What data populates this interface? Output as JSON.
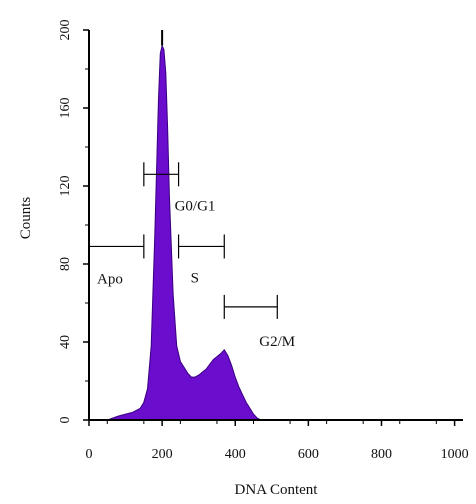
{
  "chart_data": {
    "type": "area",
    "xlabel": "DNA Content",
    "ylabel": "Counts",
    "xlim": [
      0,
      1023
    ],
    "ylim": [
      0,
      200
    ],
    "x_ticks": [
      0,
      200,
      400,
      600,
      800,
      1000
    ],
    "y_ticks": [
      0,
      40,
      80,
      120,
      160,
      200
    ],
    "grid": false,
    "fill_color": "#6a0dcc",
    "histogram": {
      "x": [
        50,
        80,
        100,
        120,
        140,
        150,
        160,
        170,
        180,
        190,
        195,
        200,
        205,
        210,
        215,
        220,
        230,
        240,
        250,
        260,
        270,
        280,
        290,
        300,
        320,
        340,
        360,
        370,
        380,
        390,
        400,
        410,
        420,
        430,
        440,
        450,
        460,
        470
      ],
      "y": [
        0,
        2,
        3,
        4,
        6,
        9,
        16,
        38,
        95,
        165,
        188,
        192,
        190,
        178,
        150,
        115,
        65,
        38,
        30,
        27,
        24,
        22,
        22,
        23,
        26,
        31,
        34,
        36,
        33,
        28,
        22,
        17,
        13,
        9,
        6,
        3,
        1,
        0
      ]
    },
    "gates": [
      {
        "label": "Apo",
        "x_start": 0,
        "x_end": 150,
        "y": 89
      },
      {
        "label": "G0/G1",
        "x_start": 150,
        "x_end": 245,
        "y": 126
      },
      {
        "label": "S",
        "x_start": 245,
        "x_end": 370,
        "y": 89
      },
      {
        "label": "G2/M",
        "x_start": 370,
        "x_end": 515,
        "y": 58
      }
    ]
  }
}
